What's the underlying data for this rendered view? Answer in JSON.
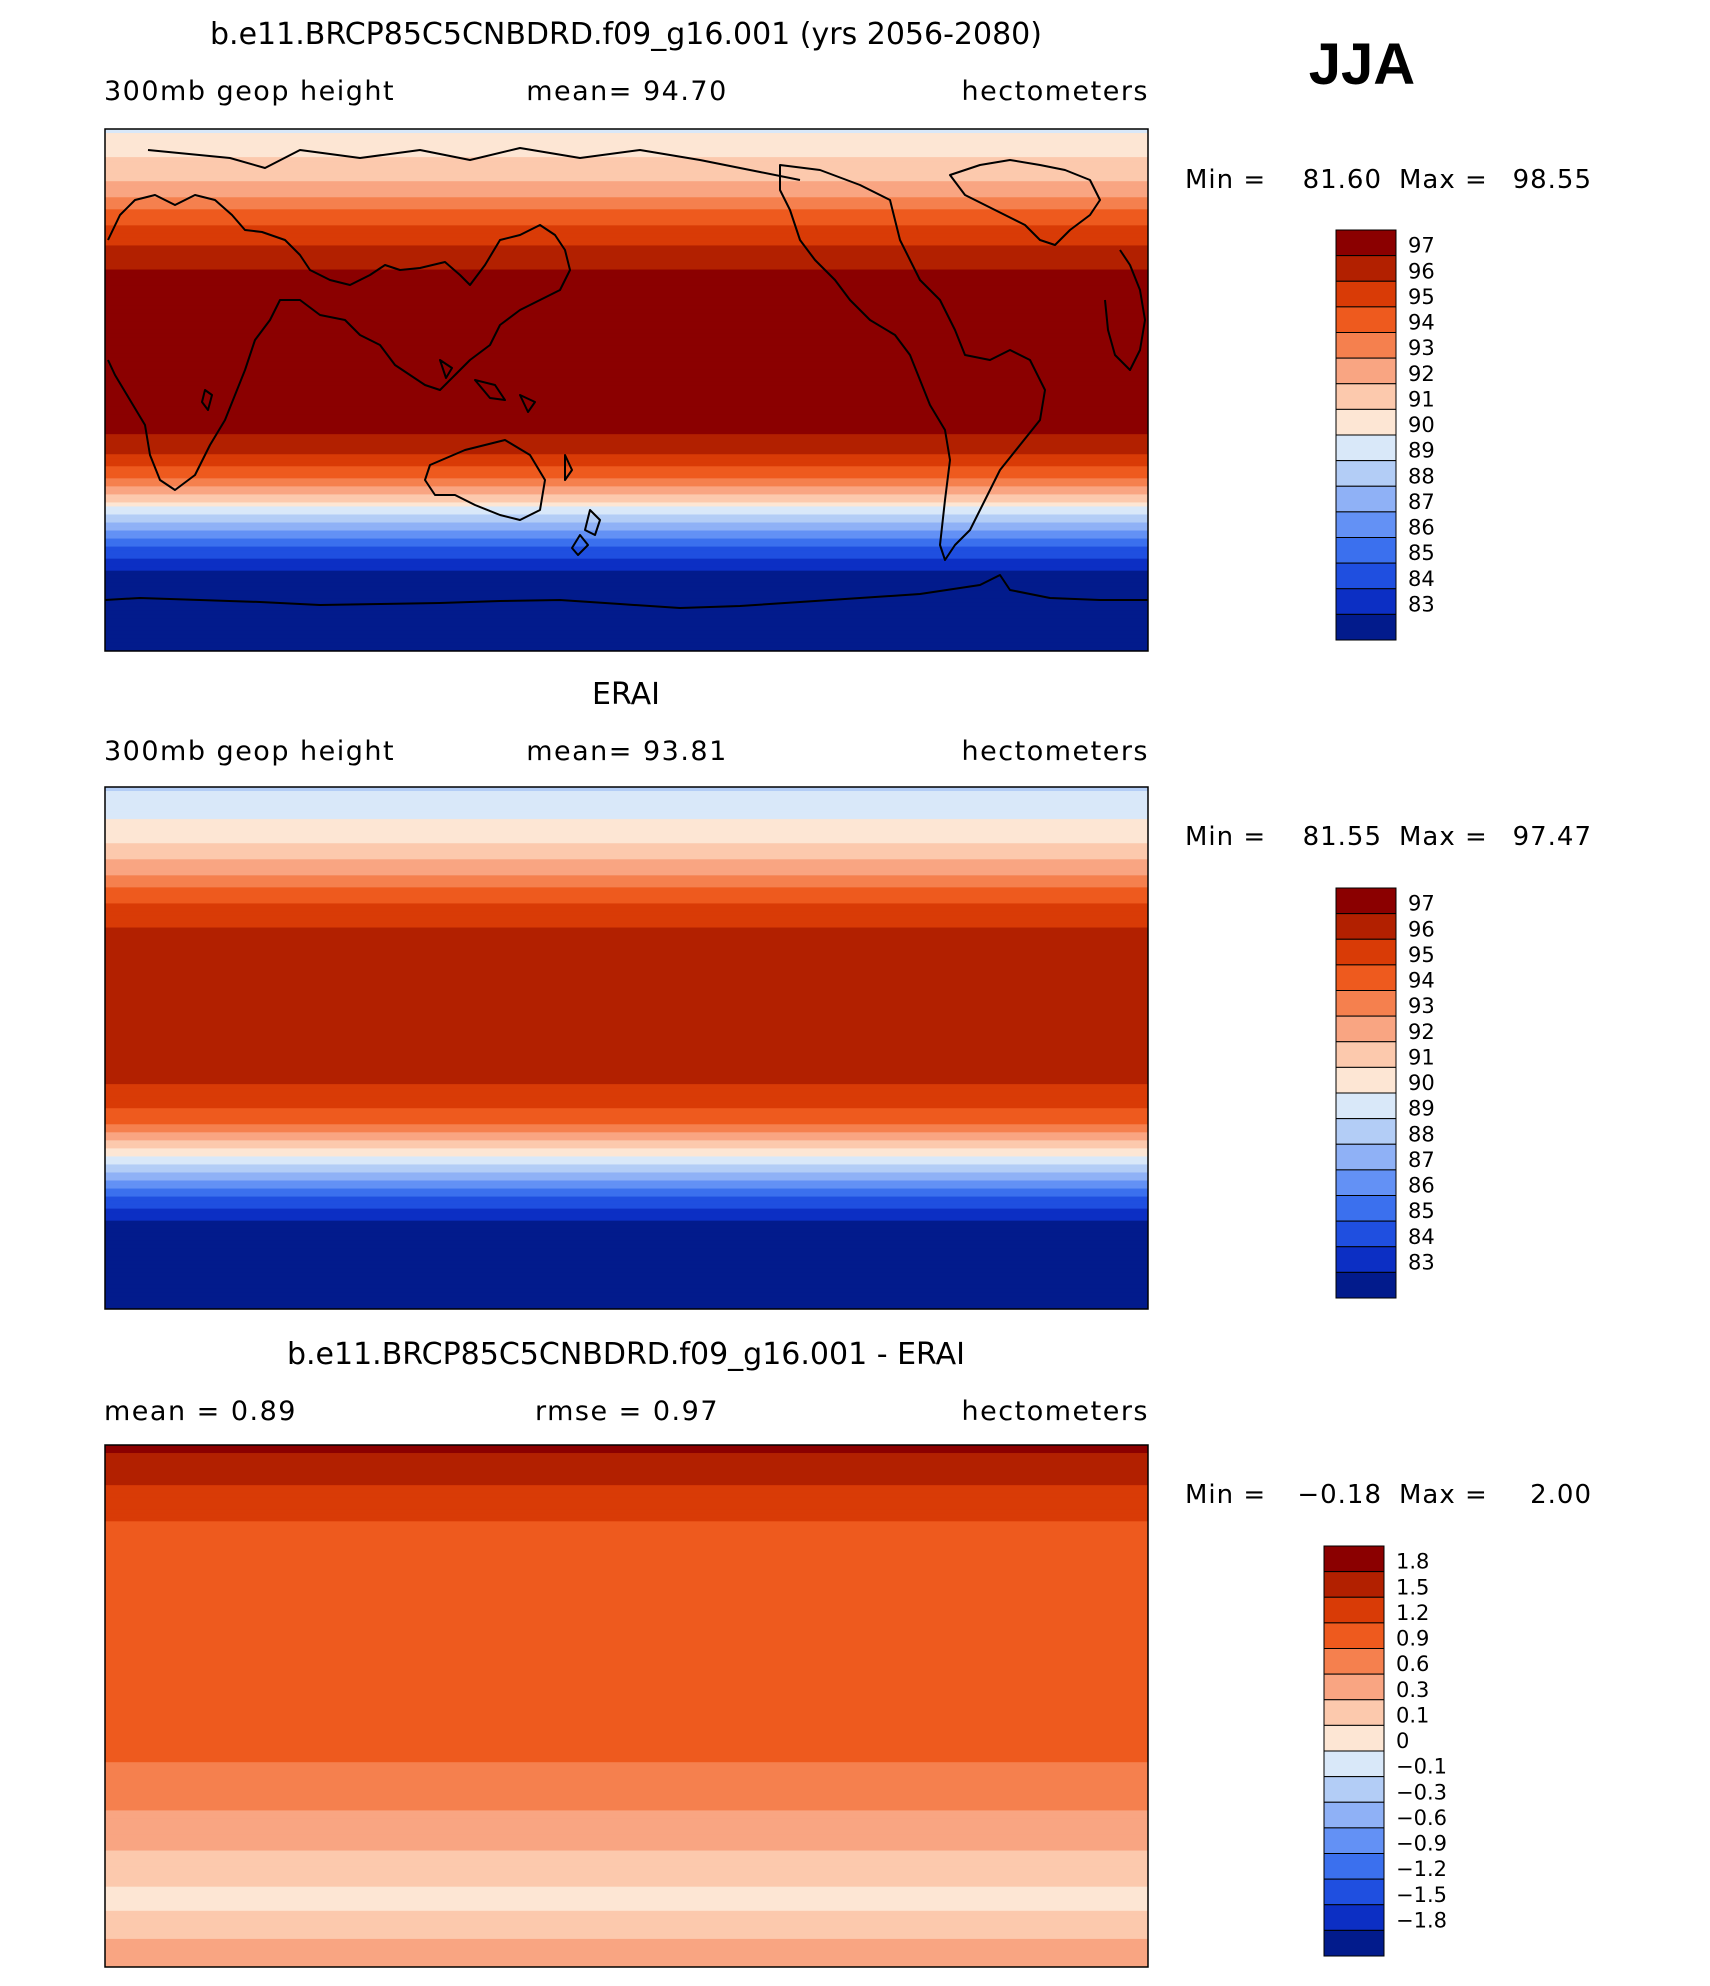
{
  "season": "JJA",
  "chart_data": [
    {
      "type": "heatmap",
      "title": "b.e11.BRCP85C5CNBDRD.f09_g16.001 (yrs 2056-2080)",
      "left_label": "300mb geop height",
      "center_label": "mean=  94.70",
      "right_label": "hectometers",
      "min_label": "Min =",
      "min_value": "81.60",
      "max_label": "Max =",
      "max_value": "98.55",
      "colorbar_labels": [
        "97",
        "96",
        "95",
        "94",
        "93",
        "92",
        "91",
        "90",
        "89",
        "88",
        "87",
        "86",
        "85",
        "84",
        "83"
      ],
      "colorbar_colors": [
        "#8b0000",
        "#b22000",
        "#d93b06",
        "#ee5a1e",
        "#f5804e",
        "#f9a582",
        "#fcc9ad",
        "#fde6d4",
        "#d9e8f9",
        "#b3cdf6",
        "#8fb1f6",
        "#6391f5",
        "#3b70ee",
        "#1f4fe0",
        "#0c2fc4",
        "#021b8c"
      ],
      "latitude_profile": [
        [
          90,
          89.8
        ],
        [
          80,
          91.0
        ],
        [
          70,
          92.2
        ],
        [
          65,
          93.3
        ],
        [
          60,
          94.5
        ],
        [
          55,
          95.4
        ],
        [
          50,
          96.0
        ],
        [
          45,
          96.6
        ],
        [
          40,
          97.1
        ],
        [
          30,
          97.4
        ],
        [
          20,
          97.5
        ],
        [
          10,
          97.5
        ],
        [
          0,
          97.5
        ],
        [
          -10,
          97.4
        ],
        [
          -15,
          97.1
        ],
        [
          -20,
          96.5
        ],
        [
          -25,
          95.5
        ],
        [
          -30,
          94.0
        ],
        [
          -35,
          92.2
        ],
        [
          -40,
          90.3
        ],
        [
          -45,
          88.2
        ],
        [
          -50,
          86.3
        ],
        [
          -55,
          84.6
        ],
        [
          -60,
          83.5
        ],
        [
          -65,
          82.5
        ],
        [
          -70,
          82.0
        ],
        [
          -80,
          81.8
        ],
        [
          -90,
          81.6
        ]
      ]
    },
    {
      "type": "heatmap",
      "title": "ERAI",
      "left_label": "300mb geop height",
      "center_label": "mean=  93.81",
      "right_label": "hectometers",
      "min_label": "Min =",
      "min_value": "81.55",
      "max_label": "Max =",
      "max_value": "97.47",
      "colorbar_labels": [
        "97",
        "96",
        "95",
        "94",
        "93",
        "92",
        "91",
        "90",
        "89",
        "88",
        "87",
        "86",
        "85",
        "84",
        "83"
      ],
      "colorbar_colors": [
        "#8b0000",
        "#b22000",
        "#d93b06",
        "#ee5a1e",
        "#f5804e",
        "#f9a582",
        "#fcc9ad",
        "#fde6d4",
        "#d9e8f9",
        "#b3cdf6",
        "#8fb1f6",
        "#6391f5",
        "#3b70ee",
        "#1f4fe0",
        "#0c2fc4",
        "#021b8c"
      ],
      "latitude_profile": [
        [
          90,
          88.8
        ],
        [
          80,
          89.8
        ],
        [
          70,
          91.0
        ],
        [
          65,
          92.0
        ],
        [
          60,
          93.0
        ],
        [
          55,
          94.0
        ],
        [
          50,
          94.9
        ],
        [
          45,
          95.6
        ],
        [
          40,
          96.2
        ],
        [
          30,
          96.6
        ],
        [
          25,
          96.7
        ],
        [
          20,
          96.4
        ],
        [
          10,
          96.3
        ],
        [
          0,
          96.3
        ],
        [
          -10,
          96.2
        ],
        [
          -15,
          95.8
        ],
        [
          -20,
          95.2
        ],
        [
          -25,
          94.3
        ],
        [
          -30,
          92.8
        ],
        [
          -35,
          91.0
        ],
        [
          -40,
          89.2
        ],
        [
          -45,
          87.3
        ],
        [
          -50,
          85.5
        ],
        [
          -55,
          84.0
        ],
        [
          -60,
          83.0
        ],
        [
          -65,
          82.2
        ],
        [
          -70,
          81.8
        ],
        [
          -80,
          81.6
        ],
        [
          -90,
          81.55
        ]
      ]
    },
    {
      "type": "heatmap",
      "title": "b.e11.BRCP85C5CNBDRD.f09_g16.001 - ERAI",
      "left_label": "mean =     0.89",
      "center_label": "rmse =     0.97",
      "right_label": "hectometers",
      "min_label": "Min =",
      "min_value": "−0.18",
      "max_label": "Max =",
      "max_value": "2.00",
      "colorbar_labels": [
        "1.8",
        "1.5",
        "1.2",
        "0.9",
        "0.6",
        "0.3",
        "0.1",
        "0",
        "−0.1",
        "−0.3",
        "−0.6",
        "−0.9",
        "−1.2",
        "−1.5",
        "−1.8"
      ],
      "colorbar_colors": [
        "#8b0000",
        "#b22000",
        "#d93b06",
        "#ee5a1e",
        "#f5804e",
        "#f9a582",
        "#fcc9ad",
        "#fde6d4",
        "#d9e8f9",
        "#b3cdf6",
        "#8fb1f6",
        "#6391f5",
        "#3b70ee",
        "#1f4fe0",
        "#0c2fc4",
        "#021b8c"
      ],
      "latitude_profile": [
        [
          90,
          1.9
        ],
        [
          80,
          1.6
        ],
        [
          70,
          1.3
        ],
        [
          60,
          1.15
        ],
        [
          50,
          1.0
        ],
        [
          40,
          1.1
        ],
        [
          30,
          1.0
        ],
        [
          20,
          0.95
        ],
        [
          10,
          1.0
        ],
        [
          0,
          1.0
        ],
        [
          -10,
          0.95
        ],
        [
          -20,
          0.9
        ],
        [
          -30,
          0.7
        ],
        [
          -40,
          0.55
        ],
        [
          -50,
          0.3
        ],
        [
          -60,
          0.15
        ],
        [
          -65,
          0.05
        ],
        [
          -70,
          0.1
        ],
        [
          -80,
          0.3
        ],
        [
          -90,
          0.5
        ]
      ]
    }
  ]
}
